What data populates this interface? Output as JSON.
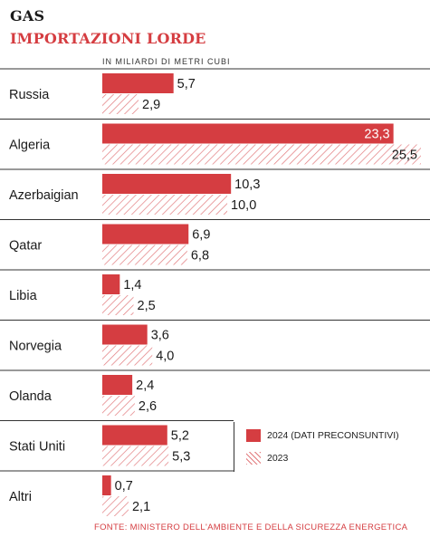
{
  "header": {
    "title": "GAS",
    "subtitle": "IMPORTAZIONI LORDE",
    "unit": "IN MILIARDI DI METRI CUBI",
    "source": "FONTE: MINISTERO DELL'AMBIENTE E DELLA SICUREZZA ENERGETICA"
  },
  "legend": {
    "a": "2024 (DATI PRECONSUNTIVI)",
    "b": "2023"
  },
  "colors": {
    "accent": "#d53d41",
    "hatch": "#e27b7e",
    "divider": "#333333"
  },
  "chart_data": {
    "type": "bar",
    "orientation": "horizontal",
    "categories": [
      "Russia",
      "Algeria",
      "Azerbaigian",
      "Qatar",
      "Libia",
      "Norvegia",
      "Olanda",
      "Stati Uniti",
      "Altri"
    ],
    "series": [
      {
        "name": "2024 (DATI PRECONSUNTIVI)",
        "values": [
          5.7,
          23.3,
          10.3,
          6.9,
          1.4,
          3.6,
          2.4,
          5.2,
          0.7
        ],
        "labels": [
          "5,7",
          "23,3",
          "10,3",
          "6,9",
          "1,4",
          "3,6",
          "2,4",
          "5,2",
          "0,7"
        ]
      },
      {
        "name": "2023",
        "values": [
          2.9,
          25.5,
          10.0,
          6.8,
          2.5,
          4.0,
          2.6,
          5.3,
          2.1
        ],
        "labels": [
          "2,9",
          "25,5",
          "10,0",
          "6,8",
          "2,5",
          "4,0",
          "2,6",
          "5,3",
          "2,1"
        ]
      }
    ],
    "xlim": [
      0,
      25.5
    ],
    "legend_position": "right",
    "grid": false
  }
}
